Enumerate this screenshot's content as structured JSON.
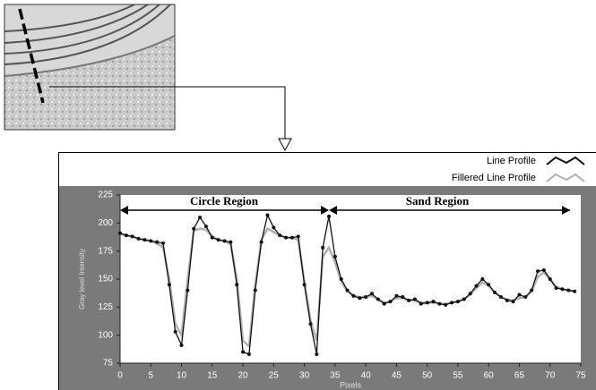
{
  "chart_data": {
    "type": "line",
    "xlabel": "Pixels",
    "ylabel": "Gray level Intensity",
    "annotations": [
      "Circle Region",
      "Sand Region"
    ],
    "x": [
      0,
      1,
      2,
      3,
      4,
      5,
      6,
      7,
      8,
      9,
      10,
      11,
      12,
      13,
      14,
      15,
      16,
      17,
      18,
      19,
      20,
      21,
      22,
      23,
      24,
      25,
      26,
      27,
      28,
      29,
      30,
      31,
      32,
      33,
      34,
      35,
      36,
      37,
      38,
      39,
      40,
      41,
      42,
      43,
      44,
      45,
      46,
      47,
      48,
      49,
      50,
      51,
      52,
      53,
      54,
      55,
      56,
      57,
      58,
      59,
      60,
      61,
      62,
      63,
      64,
      65,
      66,
      67,
      68,
      69,
      70,
      71,
      72,
      73,
      74
    ],
    "series": [
      {
        "name": "Line Profile",
        "color": "#111111",
        "values": [
          191,
          189,
          188,
          186,
          185,
          184,
          183,
          182,
          145,
          103,
          91,
          140,
          195,
          205,
          197,
          187,
          185,
          184,
          183,
          145,
          85,
          83,
          140,
          183,
          207,
          196,
          189,
          187,
          187,
          188,
          145,
          110,
          83,
          178,
          206,
          170,
          150,
          140,
          135,
          133,
          134,
          137,
          132,
          128,
          130,
          135,
          134,
          131,
          132,
          128,
          129,
          130,
          128,
          127,
          129,
          130,
          132,
          137,
          144,
          150,
          145,
          138,
          134,
          131,
          130,
          136,
          134,
          140,
          157,
          158,
          150,
          142,
          141,
          140,
          139
        ]
      },
      {
        "name": "Fillered Line Profile",
        "color": "#b0b0b0",
        "values": [
          190,
          189,
          188,
          186,
          185,
          184,
          182,
          178,
          150,
          110,
          100,
          150,
          193,
          195,
          194,
          188,
          185,
          184,
          181,
          150,
          95,
          90,
          145,
          185,
          195,
          192,
          189,
          187,
          187,
          185,
          148,
          113,
          95,
          170,
          178,
          165,
          148,
          139,
          135,
          134,
          134,
          135,
          132,
          129,
          130,
          133,
          133,
          131,
          131,
          129,
          129,
          129,
          128,
          128,
          129,
          130,
          132,
          136,
          142,
          147,
          144,
          138,
          134,
          132,
          131,
          133,
          134,
          139,
          152,
          156,
          150,
          143,
          141,
          140,
          139
        ]
      }
    ],
    "xlim": [
      0,
      75
    ],
    "xticks": [
      0,
      5,
      10,
      15,
      20,
      25,
      30,
      35,
      40,
      45,
      50,
      55,
      60,
      65,
      70,
      75
    ],
    "ylim": [
      75,
      225
    ],
    "yticks": [
      75,
      100,
      125,
      150,
      175,
      200,
      225
    ]
  }
}
